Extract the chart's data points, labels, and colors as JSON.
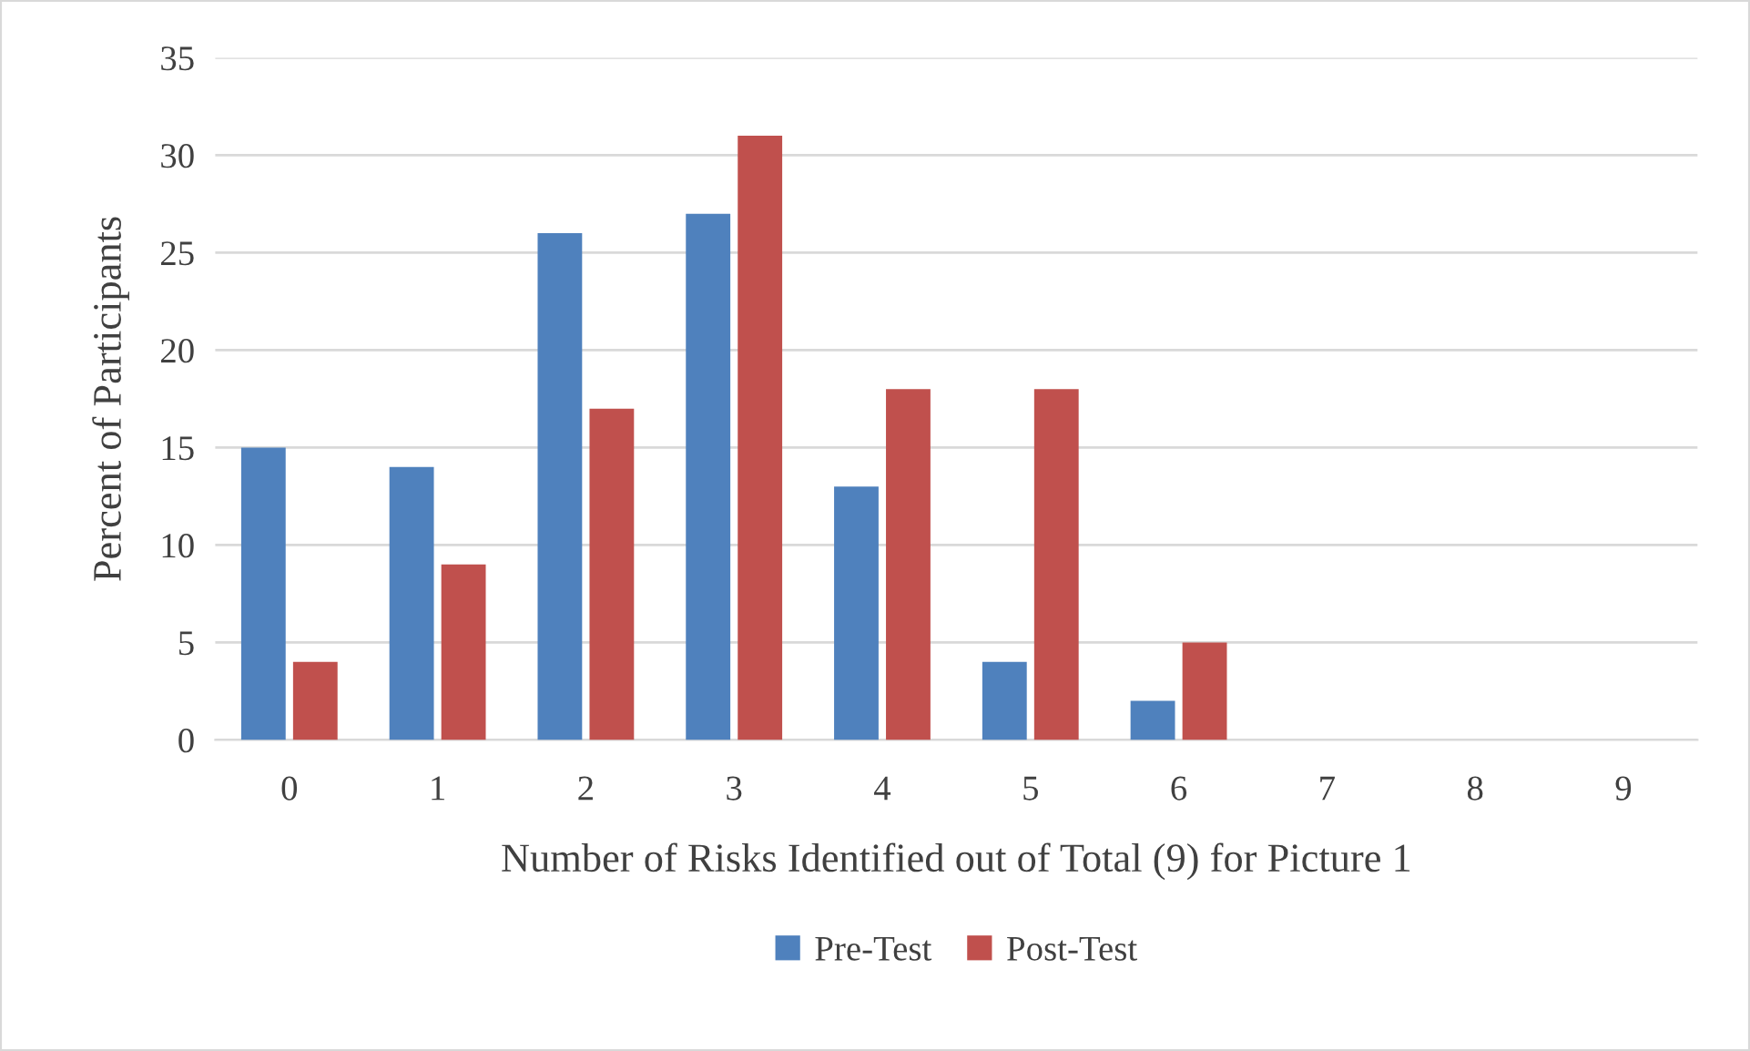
{
  "chart_data": {
    "type": "bar",
    "categories": [
      "0",
      "1",
      "2",
      "3",
      "4",
      "5",
      "6",
      "7",
      "8",
      "9"
    ],
    "series": [
      {
        "name": "Pre-Test",
        "color": "#4f81bd",
        "values": [
          15,
          14,
          26,
          27,
          13,
          4,
          2,
          0,
          0,
          0
        ]
      },
      {
        "name": "Post-Test",
        "color": "#c0504d",
        "values": [
          4,
          9,
          17,
          31,
          18,
          18,
          5,
          0,
          0,
          0
        ]
      }
    ],
    "xlabel": "Number of Risks Identified out of Total (9) for Picture 1",
    "ylabel": "Percent of Participants",
    "ylim": [
      0,
      35
    ],
    "yticks": [
      0,
      5,
      10,
      15,
      20,
      25,
      30,
      35
    ],
    "grid": "y",
    "legend": "bottom"
  }
}
